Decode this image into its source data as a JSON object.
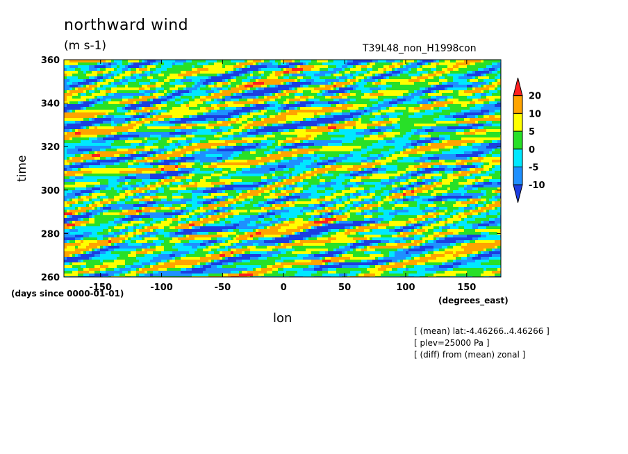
{
  "chart_data": {
    "type": "heatmap",
    "title": "northward wind",
    "units": "(m s-1)",
    "experiment": "T39L48_non_H1998con",
    "xlabel": "lon",
    "ylabel": "time",
    "x_unit": "(degrees_east)",
    "y_unit": "(days since 0000-01-01)",
    "xlim": [
      -180,
      178
    ],
    "ylim": [
      260,
      360
    ],
    "x_ticks": [
      -150,
      -100,
      -50,
      0,
      50,
      100,
      150
    ],
    "x_tick_labels": [
      "-150",
      "-100",
      "-50",
      "0",
      "50",
      "100",
      "150"
    ],
    "y_ticks": [
      260,
      280,
      300,
      320,
      340,
      360
    ],
    "y_tick_labels": [
      "260",
      "280",
      "300",
      "320",
      "340",
      "360"
    ],
    "color_levels": [
      -10,
      -5,
      0,
      5,
      10,
      20
    ],
    "colorbar_labels": [
      "20",
      "10",
      "5",
      "0",
      "-5",
      "-10"
    ],
    "colors": [
      "#1c3ee0",
      "#1e90ff",
      "#00e8ff",
      "#28e028",
      "#ffff00",
      "#ffa400",
      "#ff2020"
    ],
    "notes": [
      "[ (mean) lat:-4.46266..4.46266 ]",
      "[ plev=25000 Pa ]",
      "[ (diff) from (mean) zonal ]"
    ]
  }
}
